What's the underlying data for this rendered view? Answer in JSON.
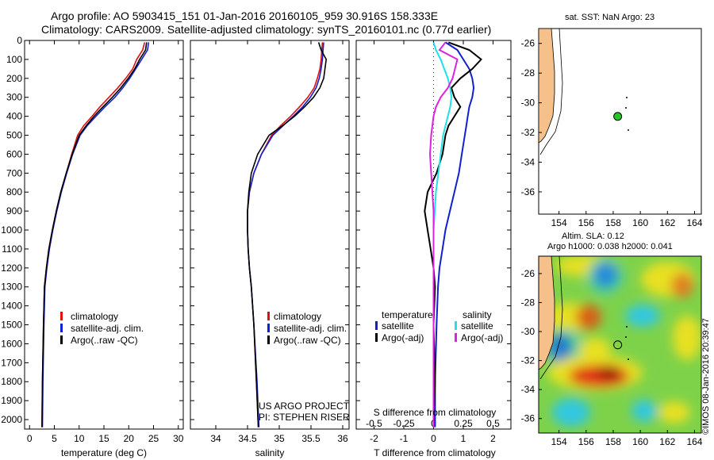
{
  "header": {
    "line1": "Argo profile: AO 5903415_151 01-Jan-2016 20160105_959 30.916S 158.333E",
    "line2": "Climatology: CARS2009. Satellite-adjusted climatology: synTS_20160101.nc (0.77d earlier)"
  },
  "map_top": {
    "title": "sat. SST: NaN Argo: 23"
  },
  "map_bottom": {
    "title1": "Altim. SLA: 0.12",
    "title2": "Argo h1000: 0.038 h2000: 0.041"
  },
  "credit": "©IMOS 08-Jan-2016 20:39:47",
  "project_line1": "US ARGO PROJECT",
  "project_line2": "PI: STEPHEN RISER",
  "colors": {
    "climatology": "#e01010",
    "satellite": "#1020d0",
    "argo": "#000000",
    "sat_salinity": "#20e0e8",
    "argo_adj_salinity": "#e020e0",
    "land": "#f5c08a"
  },
  "chart_data": [
    {
      "type": "line",
      "panel": "temperature",
      "xlabel": "temperature (deg C)",
      "ylabel": "",
      "xlim": [
        -1,
        31
      ],
      "ylim": [
        2050,
        0
      ],
      "xticks": [
        0,
        5,
        10,
        15,
        20,
        25,
        30
      ],
      "yticks": [
        0,
        100,
        200,
        300,
        400,
        500,
        600,
        700,
        800,
        900,
        1000,
        1100,
        1200,
        1300,
        1400,
        1500,
        1600,
        1700,
        1800,
        1900,
        2000
      ],
      "legend": [
        "climatology",
        "satellite-adj. clim.",
        "Argo(..raw -QC)"
      ],
      "series": [
        {
          "name": "climatology",
          "x": [
            23.2,
            22.8,
            21.6,
            20.8,
            19.4,
            17.8,
            16.0,
            14.2,
            12.6,
            10.9,
            9.7,
            8.5,
            7.4,
            6.3,
            5.4,
            4.6,
            3.9,
            3.4,
            3.0,
            2.8,
            2.6,
            2.5
          ],
          "depth": [
            10,
            50,
            100,
            150,
            200,
            250,
            300,
            350,
            400,
            450,
            500,
            600,
            700,
            800,
            900,
            1000,
            1100,
            1200,
            1300,
            1500,
            1800,
            2040
          ]
        },
        {
          "name": "satellite-adj. clim.",
          "x": [
            24.0,
            23.8,
            22.6,
            21.4,
            20.2,
            18.8,
            17.2,
            15.2,
            13.4,
            11.6,
            10.2,
            8.7,
            7.5,
            6.4,
            5.5,
            4.7,
            4.0,
            3.5,
            3.1,
            2.9,
            2.7,
            2.6
          ],
          "depth": [
            10,
            50,
            100,
            150,
            200,
            250,
            300,
            350,
            400,
            450,
            500,
            600,
            700,
            800,
            900,
            1000,
            1100,
            1200,
            1300,
            1500,
            1800,
            2040
          ]
        },
        {
          "name": "Argo(..raw -QC)",
          "x": [
            23.6,
            23.4,
            22.2,
            21.2,
            19.9,
            18.4,
            16.7,
            14.8,
            13.0,
            11.4,
            10.0,
            8.6,
            7.4,
            6.3,
            5.4,
            4.6,
            3.9,
            3.4,
            3.0,
            2.8,
            2.6,
            2.5
          ],
          "depth": [
            10,
            50,
            100,
            150,
            200,
            250,
            300,
            350,
            400,
            450,
            500,
            600,
            700,
            800,
            900,
            1000,
            1100,
            1200,
            1300,
            1500,
            1800,
            2040
          ]
        }
      ]
    },
    {
      "type": "line",
      "panel": "salinity",
      "xlabel": "salinity",
      "ylabel": "",
      "xlim": [
        33.6,
        36.1
      ],
      "ylim": [
        2050,
        0
      ],
      "xticks": [
        34,
        34.5,
        35,
        35.5,
        36
      ],
      "legend": [
        "climatology",
        "satellite-adj. clim.",
        "Argo(..raw -QC)"
      ],
      "series": [
        {
          "name": "climatology",
          "x": [
            35.68,
            35.67,
            35.66,
            35.64,
            35.6,
            35.55,
            35.45,
            35.32,
            35.18,
            35.02,
            34.88,
            34.72,
            34.6,
            34.53,
            34.5,
            34.5,
            34.51,
            34.53,
            34.56,
            34.6,
            34.64,
            34.67
          ],
          "depth": [
            10,
            50,
            100,
            150,
            200,
            250,
            300,
            350,
            400,
            450,
            500,
            600,
            700,
            800,
            900,
            1000,
            1100,
            1200,
            1300,
            1500,
            1800,
            2040
          ]
        },
        {
          "name": "satellite-adj. clim.",
          "x": [
            35.7,
            35.69,
            35.68,
            35.66,
            35.63,
            35.58,
            35.49,
            35.37,
            35.22,
            35.06,
            34.9,
            34.72,
            34.6,
            34.53,
            34.5,
            34.5,
            34.51,
            34.53,
            34.56,
            34.6,
            34.65,
            34.68
          ],
          "depth": [
            10,
            50,
            100,
            150,
            200,
            250,
            300,
            350,
            400,
            450,
            500,
            600,
            700,
            800,
            900,
            1000,
            1100,
            1200,
            1300,
            1500,
            1800,
            2040
          ]
        },
        {
          "name": "Argo(..raw -QC)",
          "x": [
            35.62,
            35.66,
            35.74,
            35.72,
            35.7,
            35.64,
            35.54,
            35.4,
            35.24,
            35.05,
            34.84,
            34.66,
            34.56,
            34.52,
            34.5,
            34.5,
            34.51,
            34.53,
            34.56,
            34.6,
            34.64,
            34.67
          ],
          "depth": [
            10,
            50,
            100,
            150,
            200,
            250,
            300,
            350,
            400,
            450,
            500,
            600,
            700,
            800,
            900,
            1000,
            1100,
            1200,
            1300,
            1500,
            1800,
            2040
          ]
        }
      ]
    },
    {
      "type": "line",
      "panel": "difference",
      "xlabel": "T difference from climatology",
      "xlabel2": "S difference from climatology",
      "xlim": [
        -2.6,
        2.6
      ],
      "ylim": [
        2050,
        0
      ],
      "xticks": [
        -2,
        -1,
        0,
        1,
        2
      ],
      "xticks2": [
        -0.5,
        -0.25,
        0,
        0.25,
        0.5
      ],
      "legend_temperature_title": "temperature",
      "legend_salinity_title": "salinity",
      "legend": [
        "satellite",
        "Argo(-adj)",
        "satellite",
        "Argo(-adj)"
      ],
      "series": [
        {
          "name": "satellite",
          "group": "temperature",
          "x": [
            0.4,
            0.8,
            1.0,
            1.2,
            1.3,
            1.35,
            1.3,
            1.2,
            1.15,
            1.1,
            1.05,
            0.95,
            0.85,
            0.7,
            0.55,
            0.4,
            0.3,
            0.2,
            0.15,
            0.1,
            0.05,
            0.05
          ],
          "depth": [
            10,
            50,
            100,
            150,
            200,
            250,
            300,
            350,
            400,
            450,
            500,
            600,
            700,
            800,
            900,
            1000,
            1100,
            1200,
            1300,
            1500,
            1800,
            2040
          ]
        },
        {
          "name": "Argo(-adj)",
          "group": "temperature",
          "x": [
            0.5,
            1.2,
            1.6,
            1.3,
            0.9,
            0.6,
            0.7,
            0.9,
            0.7,
            0.5,
            0.4,
            0.3,
            0.1,
            -0.2,
            -0.3,
            -0.2,
            -0.1,
            0.0,
            0.05,
            0.0,
            0.05,
            0.0
          ],
          "depth": [
            10,
            50,
            100,
            150,
            200,
            250,
            300,
            350,
            400,
            450,
            500,
            600,
            700,
            800,
            900,
            1000,
            1100,
            1200,
            1300,
            1500,
            1800,
            2040
          ]
        },
        {
          "name": "satellite",
          "group": "salinity",
          "x": [
            0.0,
            0.02,
            0.06,
            0.09,
            0.12,
            0.14,
            0.15,
            0.14,
            0.12,
            0.1,
            0.08,
            0.06,
            0.04,
            0.02,
            0.01,
            0.0,
            0.0,
            0.0,
            0.0,
            0.0,
            0.0,
            0.0
          ],
          "depth": [
            10,
            50,
            100,
            150,
            200,
            250,
            300,
            350,
            400,
            450,
            500,
            600,
            700,
            800,
            900,
            1000,
            1100,
            1200,
            1300,
            1500,
            1800,
            2040
          ]
        },
        {
          "name": "Argo(-adj)",
          "group": "salinity",
          "x": [
            0.1,
            0.05,
            0.2,
            0.18,
            0.16,
            0.12,
            0.06,
            0.02,
            0.0,
            -0.01,
            -0.02,
            -0.03,
            -0.02,
            -0.01,
            0.0,
            0.0,
            0.0,
            0.0,
            0.0,
            0.0,
            0.0,
            0.0
          ],
          "depth": [
            10,
            50,
            100,
            150,
            200,
            250,
            300,
            350,
            400,
            450,
            500,
            600,
            700,
            800,
            900,
            1000,
            1100,
            1200,
            1300,
            1500,
            1800,
            2040
          ]
        }
      ]
    },
    {
      "type": "scatter",
      "panel": "map-sst",
      "xlim": [
        152.5,
        164.5
      ],
      "ylim": [
        -37.5,
        -25
      ],
      "xticks": [
        154,
        156,
        158,
        160,
        162,
        164
      ],
      "yticks": [
        -26,
        -28,
        -30,
        -32,
        -34,
        -36
      ],
      "profile": {
        "lon": 158.333,
        "lat": -30.916
      }
    },
    {
      "type": "heatmap",
      "panel": "map-sla",
      "xlim": [
        152.5,
        164.5
      ],
      "ylim": [
        -37,
        -24.8
      ],
      "xticks": [
        154,
        156,
        158,
        160,
        162,
        164
      ],
      "yticks": [
        -26,
        -28,
        -30,
        -32,
        -34,
        -36
      ],
      "profile": {
        "lon": 158.333,
        "lat": -30.916
      }
    }
  ]
}
